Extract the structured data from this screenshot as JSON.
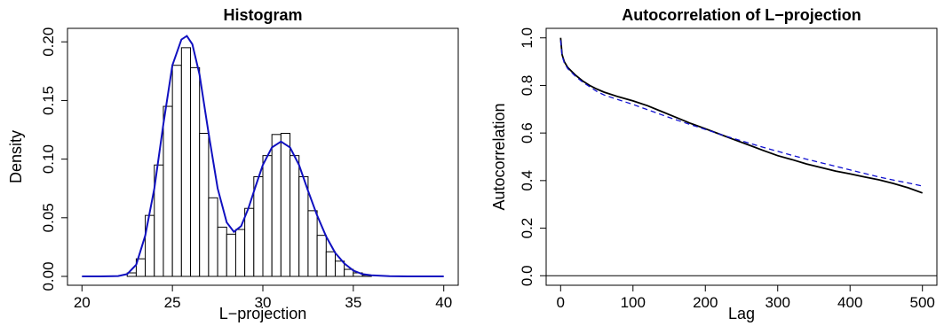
{
  "chart_data": [
    {
      "type": "bar",
      "title": "Histogram",
      "xlabel": "L−projection",
      "ylabel": "Density",
      "xlim": [
        20,
        40
      ],
      "ylim": [
        0,
        0.21
      ],
      "xticks": [
        20,
        25,
        30,
        35,
        40
      ],
      "yticks": [
        0.0,
        0.05,
        0.1,
        0.15,
        0.2
      ],
      "ytick_labels": [
        "0.00",
        "0.05",
        "0.10",
        "0.15",
        "0.20"
      ],
      "grid": false,
      "bin_width": 0.5,
      "bin_starts": [
        22.5,
        23.0,
        23.5,
        24.0,
        24.5,
        25.0,
        25.5,
        26.0,
        26.5,
        27.0,
        27.5,
        28.0,
        28.5,
        29.0,
        29.5,
        30.0,
        30.5,
        31.0,
        31.5,
        32.0,
        32.5,
        33.0,
        33.5,
        34.0,
        34.5,
        35.0,
        35.5
      ],
      "densities": [
        0.003,
        0.015,
        0.052,
        0.095,
        0.145,
        0.18,
        0.195,
        0.178,
        0.122,
        0.067,
        0.042,
        0.036,
        0.04,
        0.058,
        0.085,
        0.103,
        0.121,
        0.122,
        0.103,
        0.085,
        0.056,
        0.035,
        0.021,
        0.013,
        0.006,
        0.003,
        0.001
      ],
      "density_curve": {
        "color": "#1010c0",
        "x": [
          20,
          21,
          22,
          22.5,
          23,
          23.5,
          24,
          24.5,
          25,
          25.5,
          25.8,
          26.1,
          26.5,
          27,
          27.5,
          28,
          28.4,
          28.8,
          29.2,
          29.6,
          30,
          30.5,
          31,
          31.5,
          32,
          32.5,
          33,
          33.5,
          34,
          34.5,
          35,
          35.5,
          36,
          37,
          38,
          40
        ],
        "y": [
          0,
          0,
          0.0003,
          0.002,
          0.01,
          0.035,
          0.075,
          0.13,
          0.18,
          0.202,
          0.205,
          0.198,
          0.172,
          0.122,
          0.075,
          0.046,
          0.038,
          0.043,
          0.058,
          0.077,
          0.095,
          0.11,
          0.115,
          0.11,
          0.095,
          0.073,
          0.052,
          0.034,
          0.02,
          0.011,
          0.005,
          0.002,
          0.001,
          0.0002,
          0,
          0
        ]
      }
    },
    {
      "type": "line",
      "title": "Autocorrelation of L−projection",
      "xlabel": "Lag",
      "ylabel": "Autocorrelation",
      "xlim": [
        0,
        500
      ],
      "ylim": [
        0,
        1
      ],
      "xticks": [
        0,
        100,
        200,
        300,
        400,
        500
      ],
      "yticks": [
        0.0,
        0.2,
        0.4,
        0.6,
        0.8,
        1.0
      ],
      "ytick_labels": [
        "0.0",
        "0.2",
        "0.4",
        "0.6",
        "0.8",
        "1.0"
      ],
      "grid": false,
      "reference_line": 0,
      "series": [
        {
          "style": "solid",
          "color": "#000000",
          "x": [
            0,
            2,
            5,
            10,
            20,
            30,
            40,
            50,
            60,
            80,
            100,
            120,
            140,
            160,
            180,
            200,
            220,
            240,
            260,
            280,
            300,
            320,
            340,
            360,
            380,
            400,
            420,
            440,
            460,
            480,
            500
          ],
          "y": [
            1.0,
            0.93,
            0.9,
            0.875,
            0.845,
            0.82,
            0.8,
            0.785,
            0.772,
            0.752,
            0.735,
            0.715,
            0.69,
            0.665,
            0.64,
            0.618,
            0.595,
            0.572,
            0.55,
            0.527,
            0.505,
            0.488,
            0.47,
            0.455,
            0.44,
            0.428,
            0.415,
            0.403,
            0.388,
            0.37,
            0.348
          ]
        },
        {
          "style": "dashed",
          "color": "#1010d0",
          "x": [
            0,
            2,
            5,
            10,
            20,
            30,
            40,
            50,
            60,
            80,
            100,
            120,
            140,
            160,
            180,
            200,
            220,
            240,
            260,
            280,
            300,
            320,
            340,
            360,
            380,
            400,
            420,
            440,
            460,
            480,
            500
          ],
          "y": [
            0.99,
            0.925,
            0.895,
            0.87,
            0.84,
            0.815,
            0.795,
            0.775,
            0.76,
            0.74,
            0.72,
            0.698,
            0.676,
            0.655,
            0.635,
            0.615,
            0.595,
            0.576,
            0.558,
            0.54,
            0.523,
            0.506,
            0.49,
            0.475,
            0.46,
            0.445,
            0.43,
            0.415,
            0.402,
            0.39,
            0.377
          ]
        }
      ]
    }
  ]
}
